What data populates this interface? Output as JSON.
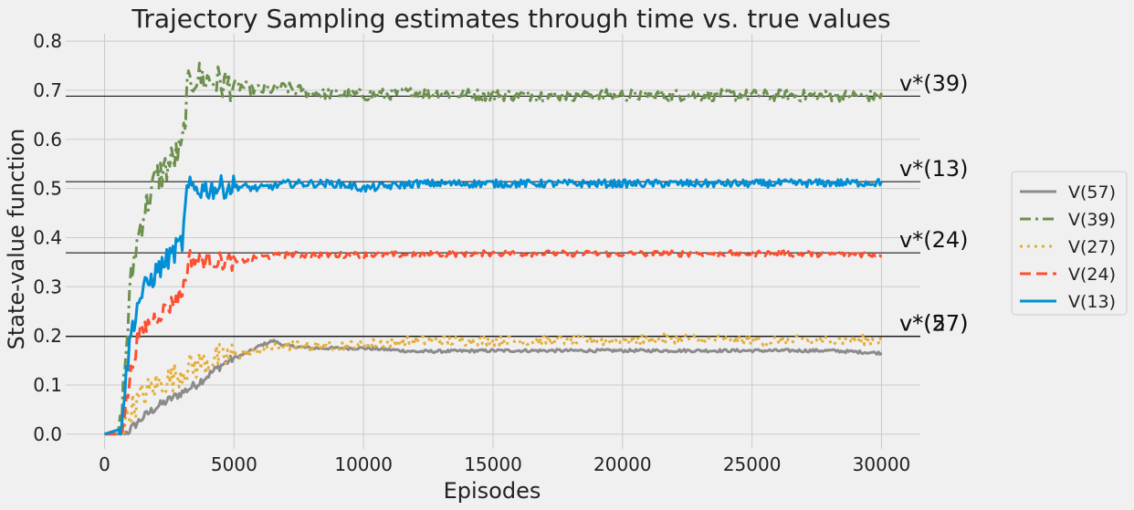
{
  "chart_data": {
    "type": "line",
    "title": "Trajectory Sampling estimates through time vs. true values",
    "xlabel": "Episodes",
    "ylabel": "State-value function",
    "xlim": [
      -1500,
      31500
    ],
    "ylim": [
      -0.03,
      0.815
    ],
    "xticks": [
      0,
      5000,
      10000,
      15000,
      20000,
      25000,
      30000
    ],
    "yticks": [
      0.0,
      0.1,
      0.2,
      0.3,
      0.4,
      0.5,
      0.6,
      0.7,
      0.8
    ],
    "grid": true,
    "legend_position": "right",
    "true_values": [
      {
        "label": "v*(39)",
        "value": 0.688
      },
      {
        "label": "v*(13)",
        "value": 0.514
      },
      {
        "label": "v*(24)",
        "value": 0.369
      },
      {
        "label": "v*(57)",
        "value": 0.199
      },
      {
        "label": "v*(27)",
        "value": 0.199
      }
    ],
    "series": [
      {
        "name": "V(57)",
        "color": "#8b8b8b",
        "dash": "solid",
        "noise": 0.003,
        "x": [
          0,
          700,
          900,
          1200,
          1500,
          2000,
          2500,
          3000,
          3500,
          4000,
          4500,
          5000,
          5500,
          6000,
          6500,
          7000,
          8000,
          9000,
          10000,
          11000,
          12000,
          15000,
          20000,
          25000,
          28000,
          30000
        ],
        "values": [
          0.0,
          0.0,
          0.005,
          0.02,
          0.035,
          0.055,
          0.07,
          0.085,
          0.1,
          0.12,
          0.14,
          0.155,
          0.165,
          0.18,
          0.19,
          0.18,
          0.175,
          0.175,
          0.175,
          0.172,
          0.168,
          0.17,
          0.17,
          0.17,
          0.17,
          0.165
        ]
      },
      {
        "name": "V(39)",
        "color": "#6d904f",
        "dash": "dashdot",
        "noise": 0.012,
        "x": [
          0,
          600,
          800,
          1000,
          1200,
          1500,
          2000,
          2500,
          3000,
          3200,
          3500,
          4000,
          5000,
          6000,
          7000,
          8000,
          10000,
          12000,
          15000,
          20000,
          25000,
          30000
        ],
        "values": [
          0.0,
          0.01,
          0.15,
          0.3,
          0.38,
          0.45,
          0.52,
          0.55,
          0.58,
          0.7,
          0.73,
          0.72,
          0.71,
          0.7,
          0.705,
          0.695,
          0.69,
          0.695,
          0.69,
          0.69,
          0.69,
          0.688
        ]
      },
      {
        "name": "V(27)",
        "color": "#e5ae38",
        "dash": "dotted",
        "noise": 0.01,
        "x": [
          0,
          700,
          1000,
          1500,
          2000,
          2500,
          3000,
          3500,
          4000,
          4500,
          5000,
          6000,
          7000,
          9000,
          12000,
          15000,
          20000,
          22000,
          25000,
          30000
        ],
        "values": [
          0.0,
          0.01,
          0.05,
          0.08,
          0.1,
          0.11,
          0.13,
          0.14,
          0.15,
          0.155,
          0.16,
          0.17,
          0.18,
          0.18,
          0.19,
          0.19,
          0.19,
          0.195,
          0.19,
          0.192
        ]
      },
      {
        "name": "V(24)",
        "color": "#fc4f30",
        "dash": "dashed",
        "noise": 0.006,
        "x": [
          0,
          600,
          800,
          1000,
          1300,
          1600,
          2000,
          2500,
          3000,
          3300,
          3600,
          4000,
          5000,
          6000,
          7000,
          10000,
          15000,
          20000,
          25000,
          30000
        ],
        "values": [
          0.0,
          0.0,
          0.05,
          0.12,
          0.2,
          0.22,
          0.24,
          0.26,
          0.29,
          0.36,
          0.35,
          0.355,
          0.35,
          0.36,
          0.365,
          0.365,
          0.368,
          0.367,
          0.368,
          0.366
        ]
      },
      {
        "name": "V(13)",
        "color": "#008fd5",
        "dash": "solid",
        "noise": 0.008,
        "x": [
          0,
          600,
          800,
          1000,
          1300,
          1600,
          2000,
          2500,
          3000,
          3200,
          3500,
          4000,
          5000,
          6000,
          7000,
          9000,
          10000,
          12000,
          15000,
          20000,
          25000,
          30000
        ],
        "values": [
          0.0,
          0.01,
          0.1,
          0.2,
          0.27,
          0.3,
          0.33,
          0.36,
          0.39,
          0.5,
          0.5,
          0.5,
          0.505,
          0.5,
          0.51,
          0.51,
          0.5,
          0.51,
          0.51,
          0.51,
          0.51,
          0.512
        ]
      }
    ]
  }
}
